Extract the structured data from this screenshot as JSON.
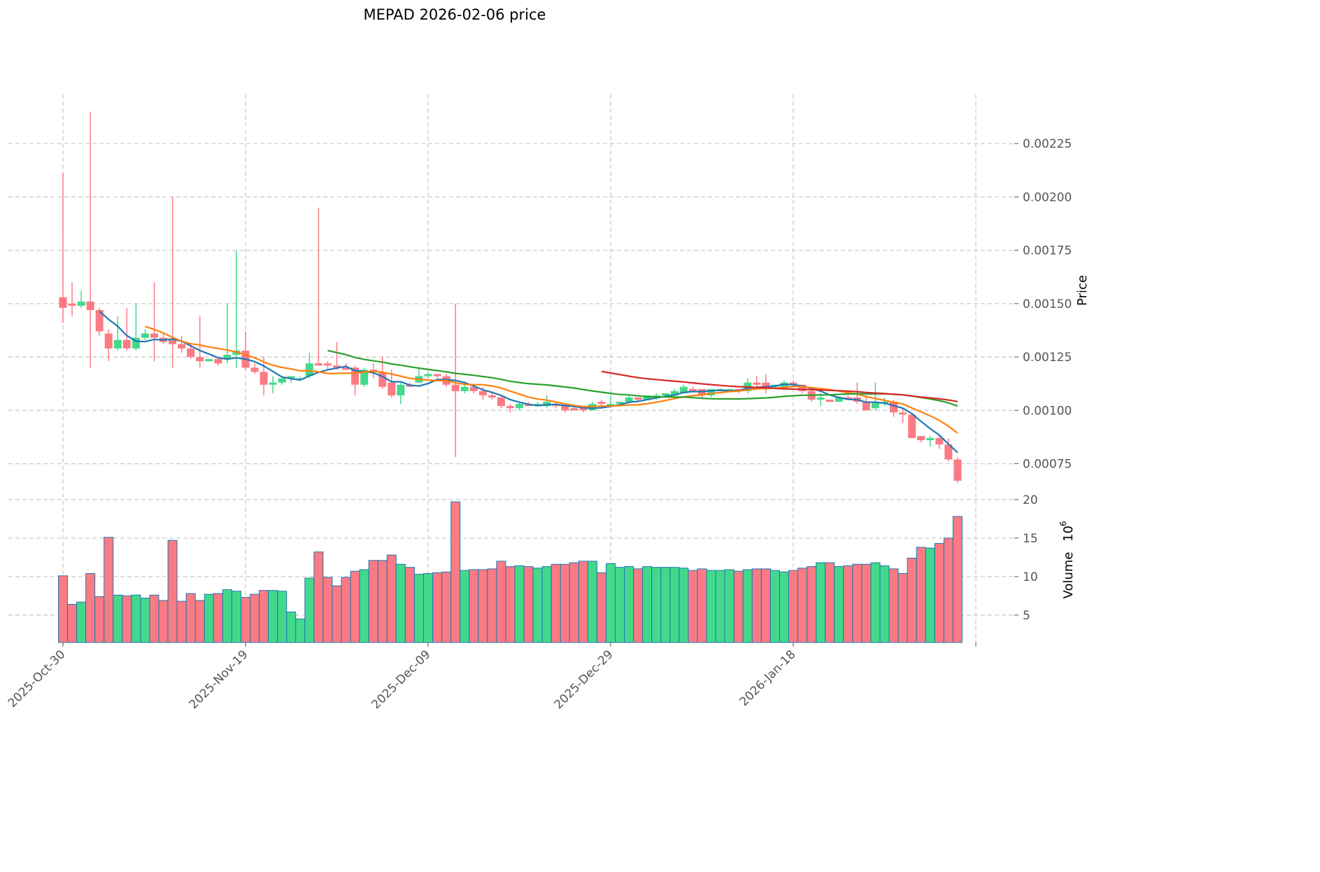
{
  "chart_data": {
    "type": "candlestick",
    "title": "MEPAD  2026-02-06  price",
    "ylabel": "Price",
    "volume_label": "Volume",
    "volume_exponent": "10",
    "volume_exponent_power": "6",
    "ylim": [
      0.00066,
      0.00248
    ],
    "volume_ylim": [
      1.45,
      20.8
    ],
    "grid": true,
    "price_ticks": [
      "0.00075",
      "0.00100",
      "0.00125",
      "0.00150",
      "0.00175",
      "0.00200",
      "0.00225"
    ],
    "volume_ticks": [
      "5",
      "10",
      "15",
      "20"
    ],
    "x_ticks": [
      {
        "index": 0,
        "label": "2025-Oct-30"
      },
      {
        "index": 20,
        "label": "2025-Nov-19"
      },
      {
        "index": 40,
        "label": "2025-Dec-09"
      },
      {
        "index": 60,
        "label": "2025-Dec-29"
      },
      {
        "index": 80,
        "label": "2026-Jan-18"
      },
      {
        "index": 100,
        "label": ""
      }
    ],
    "colors": {
      "up": "#43d98a",
      "down": "#fb7b84",
      "volume_edge": "#1f77b4"
    },
    "moving_averages": [
      {
        "period": 5,
        "color": "#1f77b4"
      },
      {
        "period": 10,
        "color": "#ff7f0e"
      },
      {
        "period": 30,
        "color": "#2ca02c"
      },
      {
        "period": 60,
        "color": "#d62728"
      }
    ],
    "ohlc": [
      [
        0.00153,
        0.00211,
        0.00141,
        0.00148
      ],
      [
        0.0015,
        0.0016,
        0.00144,
        0.00149
      ],
      [
        0.00149,
        0.00156,
        0.00148,
        0.00151
      ],
      [
        0.00151,
        0.0024,
        0.0012,
        0.00147
      ],
      [
        0.00147,
        0.00148,
        0.00135,
        0.00137
      ],
      [
        0.00136,
        0.00138,
        0.00123,
        0.00129
      ],
      [
        0.00129,
        0.00144,
        0.00128,
        0.00133
      ],
      [
        0.00133,
        0.00148,
        0.00128,
        0.00129
      ],
      [
        0.00129,
        0.0015,
        0.00128,
        0.00134
      ],
      [
        0.00134,
        0.00138,
        0.00133,
        0.00136
      ],
      [
        0.00136,
        0.0016,
        0.00123,
        0.00134
      ],
      [
        0.00134,
        0.00136,
        0.00131,
        0.00132
      ],
      [
        0.00133,
        0.002,
        0.0012,
        0.00131
      ],
      [
        0.00131,
        0.00135,
        0.00127,
        0.00129
      ],
      [
        0.00129,
        0.00131,
        0.00124,
        0.00125
      ],
      [
        0.00125,
        0.00144,
        0.0012,
        0.00123
      ],
      [
        0.00123,
        0.00124,
        0.00123,
        0.00124
      ],
      [
        0.00124,
        0.00125,
        0.00121,
        0.00122
      ],
      [
        0.00124,
        0.0015,
        0.00122,
        0.00126
      ],
      [
        0.00126,
        0.00175,
        0.0012,
        0.00128
      ],
      [
        0.00128,
        0.00137,
        0.00119,
        0.0012
      ],
      [
        0.0012,
        0.00122,
        0.00117,
        0.00118
      ],
      [
        0.00118,
        0.00125,
        0.00107,
        0.00112
      ],
      [
        0.00112,
        0.00116,
        0.00108,
        0.00113
      ],
      [
        0.00113,
        0.00115,
        0.00112,
        0.00115
      ],
      [
        0.00115,
        0.00116,
        0.00113,
        0.00116
      ],
      [
        0.00115,
        0.00116,
        0.00114,
        0.00115
      ],
      [
        0.00116,
        0.00127,
        0.00115,
        0.00122
      ],
      [
        0.00122,
        0.00195,
        0.00121,
        0.00121
      ],
      [
        0.00122,
        0.00123,
        0.00119,
        0.00121
      ],
      [
        0.00121,
        0.00132,
        0.00119,
        0.0012
      ],
      [
        0.0012,
        0.00122,
        0.00119,
        0.00119
      ],
      [
        0.0012,
        0.00121,
        0.00107,
        0.00112
      ],
      [
        0.00112,
        0.0012,
        0.00111,
        0.00119
      ],
      [
        0.00119,
        0.00122,
        0.00115,
        0.00118
      ],
      [
        0.00118,
        0.00125,
        0.0011,
        0.00111
      ],
      [
        0.00113,
        0.00119,
        0.00106,
        0.00107
      ],
      [
        0.00107,
        0.00113,
        0.00103,
        0.00112
      ],
      [
        0.00112,
        0.00113,
        0.00111,
        0.00111
      ],
      [
        0.00113,
        0.0012,
        0.00113,
        0.00116
      ],
      [
        0.00116,
        0.00118,
        0.00115,
        0.00117
      ],
      [
        0.00117,
        0.00117,
        0.00115,
        0.00116
      ],
      [
        0.00116,
        0.00117,
        0.00111,
        0.00112
      ],
      [
        0.00112,
        0.0015,
        0.00078,
        0.00109
      ],
      [
        0.00109,
        0.00112,
        0.00108,
        0.00111
      ],
      [
        0.00111,
        0.00112,
        0.00108,
        0.00109
      ],
      [
        0.00109,
        0.00111,
        0.00105,
        0.00107
      ],
      [
        0.00107,
        0.00109,
        0.00105,
        0.00106
      ],
      [
        0.00106,
        0.00107,
        0.00101,
        0.00102
      ],
      [
        0.00102,
        0.00103,
        0.00099,
        0.00101
      ],
      [
        0.00101,
        0.00104,
        0.001,
        0.00103
      ],
      [
        0.00103,
        0.00104,
        0.00102,
        0.00102
      ],
      [
        0.00102,
        0.00104,
        0.00102,
        0.00103
      ],
      [
        0.00102,
        0.00107,
        0.00101,
        0.00104
      ],
      [
        0.00103,
        0.00104,
        0.00101,
        0.00102
      ],
      [
        0.00102,
        0.00102,
        0.00099,
        0.001
      ],
      [
        0.00101,
        0.00102,
        0.001,
        0.001
      ],
      [
        0.00101,
        0.00102,
        0.00099,
        0.001
      ],
      [
        0.001,
        0.00104,
        0.001,
        0.00103
      ],
      [
        0.00104,
        0.00105,
        0.00101,
        0.00103
      ],
      [
        0.00102,
        0.00107,
        0.00102,
        0.00103
      ],
      [
        0.00103,
        0.00104,
        0.00102,
        0.00104
      ],
      [
        0.00104,
        0.00107,
        0.00103,
        0.00106
      ],
      [
        0.00106,
        0.00106,
        0.00104,
        0.00105
      ],
      [
        0.00105,
        0.00107,
        0.00105,
        0.00107
      ],
      [
        0.00106,
        0.00108,
        0.00105,
        0.00107
      ],
      [
        0.00107,
        0.00108,
        0.00106,
        0.00108
      ],
      [
        0.00107,
        0.0011,
        0.00106,
        0.00109
      ],
      [
        0.00108,
        0.00112,
        0.00108,
        0.00111
      ],
      [
        0.0011,
        0.00111,
        0.0011,
        0.00109
      ],
      [
        0.0011,
        0.0011,
        0.00106,
        0.00107
      ],
      [
        0.00107,
        0.0011,
        0.00106,
        0.0011
      ],
      [
        0.00109,
        0.0011,
        0.00109,
        0.0011
      ],
      [
        0.00109,
        0.0011,
        0.00109,
        0.0011
      ],
      [
        0.0011,
        0.0011,
        0.00108,
        0.00109
      ],
      [
        0.00109,
        0.00115,
        0.00108,
        0.00113
      ],
      [
        0.00113,
        0.00116,
        0.00111,
        0.00112
      ],
      [
        0.00113,
        0.00117,
        0.00108,
        0.00111
      ],
      [
        0.00111,
        0.00112,
        0.0011,
        0.00112
      ],
      [
        0.00111,
        0.00114,
        0.0011,
        0.00113
      ],
      [
        0.00113,
        0.00114,
        0.00111,
        0.00112
      ],
      [
        0.00112,
        0.00112,
        0.00108,
        0.00109
      ],
      [
        0.00109,
        0.0011,
        0.00104,
        0.00105
      ],
      [
        0.00105,
        0.00108,
        0.00102,
        0.00106
      ],
      [
        0.00105,
        0.00105,
        0.00104,
        0.00104
      ],
      [
        0.00104,
        0.00106,
        0.00104,
        0.00106
      ],
      [
        0.00106,
        0.00107,
        0.00105,
        0.00105
      ],
      [
        0.00106,
        0.00113,
        0.00103,
        0.00104
      ],
      [
        0.00104,
        0.00107,
        0.001,
        0.001
      ],
      [
        0.00101,
        0.00113,
        0.001,
        0.00104
      ],
      [
        0.00104,
        0.00106,
        0.00102,
        0.00104
      ],
      [
        0.00104,
        0.00105,
        0.00097,
        0.00099
      ],
      [
        0.00099,
        0.00101,
        0.00094,
        0.00098
      ],
      [
        0.00098,
        0.00098,
        0.00087,
        0.00087
      ],
      [
        0.00088,
        0.00088,
        0.00085,
        0.00086
      ],
      [
        0.00086,
        0.00088,
        0.00083,
        0.00087
      ],
      [
        0.00087,
        0.00088,
        0.00082,
        0.00084
      ],
      [
        0.00084,
        0.00087,
        0.00076,
        0.00077
      ],
      [
        0.00077,
        0.00078,
        0.00066,
        0.00067
      ]
    ],
    "volume_millions": [
      10.1,
      6.4,
      6.7,
      10.4,
      7.4,
      15.1,
      7.6,
      7.5,
      7.6,
      7.2,
      7.6,
      6.9,
      14.7,
      6.8,
      7.8,
      6.9,
      7.7,
      7.8,
      8.3,
      8.1,
      7.3,
      7.7,
      8.2,
      8.2,
      8.1,
      5.4,
      4.5,
      9.8,
      13.2,
      9.9,
      8.8,
      9.9,
      10.7,
      10.9,
      12.1,
      12.1,
      12.8,
      11.6,
      11.2,
      10.3,
      10.4,
      10.5,
      10.6,
      19.7,
      10.8,
      10.9,
      10.9,
      11.0,
      12.0,
      11.3,
      11.4,
      11.3,
      11.1,
      11.3,
      11.6,
      11.6,
      11.8,
      12.0,
      12.0,
      10.5,
      11.7,
      11.2,
      11.3,
      11.0,
      11.3,
      11.2,
      11.2,
      11.2,
      11.1,
      10.8,
      11.0,
      10.8,
      10.8,
      10.9,
      10.7,
      10.9,
      11.0,
      11.0,
      10.8,
      10.6,
      10.8,
      11.1,
      11.3,
      11.8,
      11.8,
      11.3,
      11.4,
      11.6,
      11.6,
      11.8,
      11.4,
      11.0,
      10.4,
      12.4,
      13.8,
      13.7,
      14.3,
      15.0,
      17.8
    ]
  }
}
